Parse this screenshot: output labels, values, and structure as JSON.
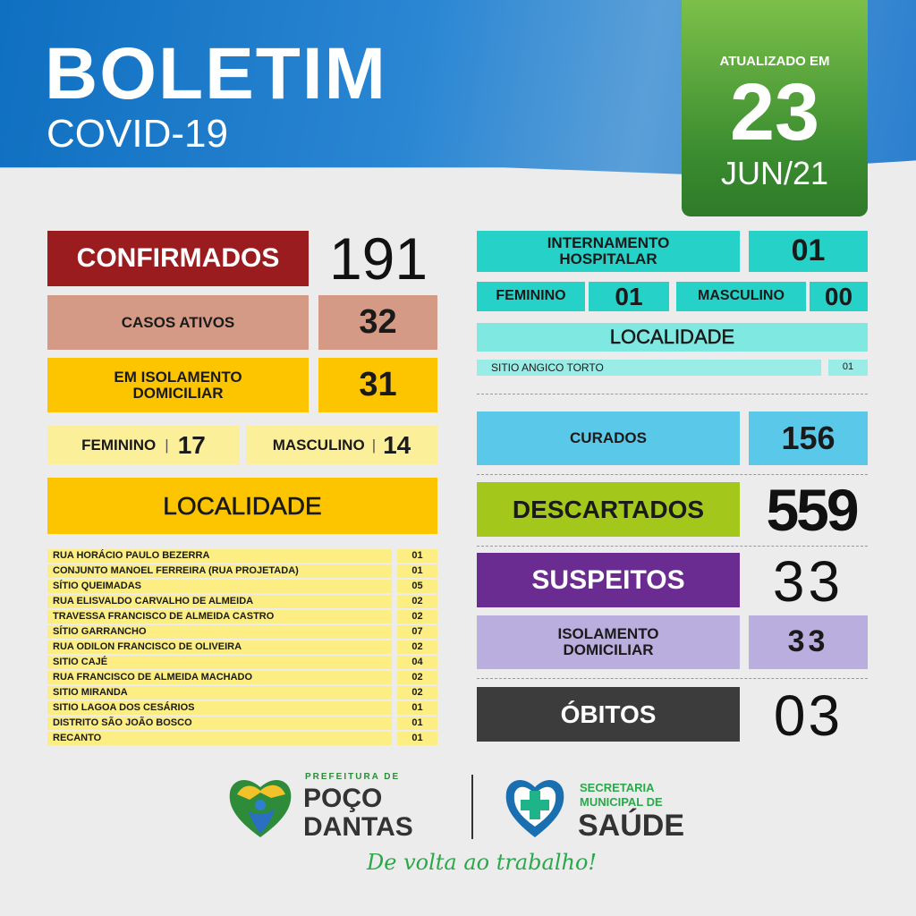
{
  "header": {
    "title": "BOLETIM",
    "subtitle": "COVID-19"
  },
  "update": {
    "label": "ATUALIZADO EM",
    "day": "23",
    "month_year": "JUN/21"
  },
  "left": {
    "confirmados": {
      "label": "CONFIRMADOS",
      "value": "191"
    },
    "casos_ativos": {
      "label": "CASOS ATIVOS",
      "value": "32"
    },
    "isolamento": {
      "label": "EM ISOLAMENTO DOMICILIAR",
      "value": "31"
    },
    "feminino": {
      "label": "FEMININO",
      "value": "17"
    },
    "masculino": {
      "label": "MASCULINO",
      "value": "14"
    },
    "localidade_title": "LOCALIDADE",
    "localidades": [
      {
        "name": "RUA HORÁCIO PAULO BEZERRA",
        "value": "01"
      },
      {
        "name": "CONJUNTO MANOEL FERREIRA (RUA PROJETADA)",
        "value": "01"
      },
      {
        "name": "SÍTIO QUEIMADAS",
        "value": "05"
      },
      {
        "name": "RUA ELISVALDO CARVALHO DE ALMEIDA",
        "value": "02"
      },
      {
        "name": "TRAVESSA FRANCISCO DE ALMEIDA CASTRO",
        "value": "02"
      },
      {
        "name": "SÍTIO GARRANCHO",
        "value": "07"
      },
      {
        "name": "RUA ODILON FRANCISCO DE OLIVEIRA",
        "value": "02"
      },
      {
        "name": "SITIO CAJÉ",
        "value": "04"
      },
      {
        "name": "RUA FRANCISCO DE ALMEIDA MACHADO",
        "value": "02"
      },
      {
        "name": "SITIO MIRANDA",
        "value": "02"
      },
      {
        "name": "SITIO LAGOA DOS CESÁRIOS",
        "value": "01"
      },
      {
        "name": "DISTRITO SÃO JOÃO BOSCO",
        "value": "01"
      },
      {
        "name": "RECANTO",
        "value": "01"
      }
    ]
  },
  "right": {
    "internamento": {
      "label": "INTERNAMENTO HOSPITALAR",
      "value": "01"
    },
    "feminino": {
      "label": "FEMININO",
      "value": "01"
    },
    "masculino": {
      "label": "MASCULINO",
      "value": "00"
    },
    "localidade_title": "LOCALIDADE",
    "localidade": {
      "name": "SITIO ANGICO TORTO",
      "value": "01"
    },
    "curados": {
      "label": "CURADOS",
      "value": "156"
    },
    "descartados": {
      "label": "DESCARTADOS",
      "value": "559"
    },
    "suspeitos": {
      "label": "SUSPEITOS",
      "value": "33"
    },
    "isolamento": {
      "label": "ISOLAMENTO DOMICILIAR",
      "value": "33"
    },
    "obitos": {
      "label": "ÓBITOS",
      "value": "03"
    }
  },
  "footer": {
    "pref_small": "PREFEITURA DE",
    "pref_line1": "POÇO",
    "pref_line2": "DANTAS",
    "sec_line1": "SECRETARIA",
    "sec_line2": "MUNICIPAL DE",
    "sec_line3": "SAÚDE",
    "slogan": "De volta ao trabalho!"
  },
  "colors": {
    "confirmados": "#9b1c1f",
    "ativos": "#d49a85",
    "amarelo": "#fcc500",
    "turquesa": "#26d1c7",
    "curados": "#5ac8e8",
    "descartados": "#a4c71b",
    "suspeitos": "#6a2c91",
    "isolamento": "#b9aedd",
    "obitos": "#3c3c3c"
  }
}
